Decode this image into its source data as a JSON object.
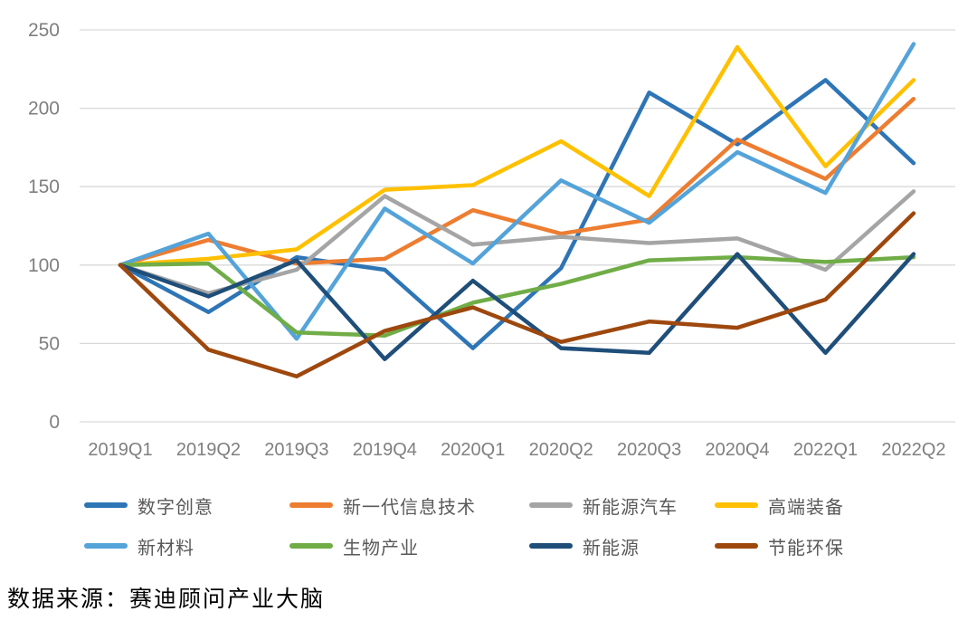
{
  "chart_data": {
    "type": "line",
    "title": "",
    "xlabel": "",
    "ylabel": "",
    "ylim": [
      0,
      250
    ],
    "yticks": [
      0,
      50,
      100,
      150,
      200,
      250
    ],
    "grid": "horizontal",
    "legend_position": "bottom",
    "categories": [
      "2019Q1",
      "2019Q2",
      "2019Q3",
      "2019Q4",
      "2020Q1",
      "2020Q2",
      "2020Q3",
      "2020Q4",
      "2022Q1",
      "2022Q2"
    ],
    "series": [
      {
        "name": "数字创意",
        "color": "#2E75B6",
        "values": [
          100,
          70,
          105,
          97,
          47,
          98,
          210,
          177,
          218,
          165
        ]
      },
      {
        "name": "新一代信息技术",
        "color": "#ED7D31",
        "values": [
          100,
          116,
          101,
          104,
          135,
          120,
          129,
          180,
          155,
          206
        ]
      },
      {
        "name": "新能源汽车",
        "color": "#A5A5A5",
        "values": [
          100,
          82,
          97,
          144,
          113,
          118,
          114,
          117,
          97,
          147
        ]
      },
      {
        "name": "高端装备",
        "color": "#FFC000",
        "values": [
          100,
          104,
          110,
          148,
          151,
          179,
          144,
          239,
          163,
          218
        ]
      },
      {
        "name": "新材料",
        "color": "#54A3D9",
        "values": [
          100,
          120,
          53,
          136,
          101,
          154,
          127,
          172,
          146,
          241
        ]
      },
      {
        "name": "生物产业",
        "color": "#70AD47",
        "values": [
          100,
          101,
          57,
          55,
          76,
          88,
          103,
          105,
          102,
          105
        ]
      },
      {
        "name": "新能源",
        "color": "#1F4E79",
        "values": [
          100,
          80,
          103,
          40,
          90,
          47,
          44,
          107,
          44,
          107
        ]
      },
      {
        "name": "节能环保",
        "color": "#9E480E",
        "values": [
          100,
          46,
          29,
          58,
          73,
          51,
          64,
          60,
          78,
          133
        ]
      }
    ],
    "axis_text_color": "#7F7F7F",
    "gridline_color": "#D9D9D9"
  },
  "source": {
    "text": "数据来源：赛迪顾问产业大脑"
  }
}
